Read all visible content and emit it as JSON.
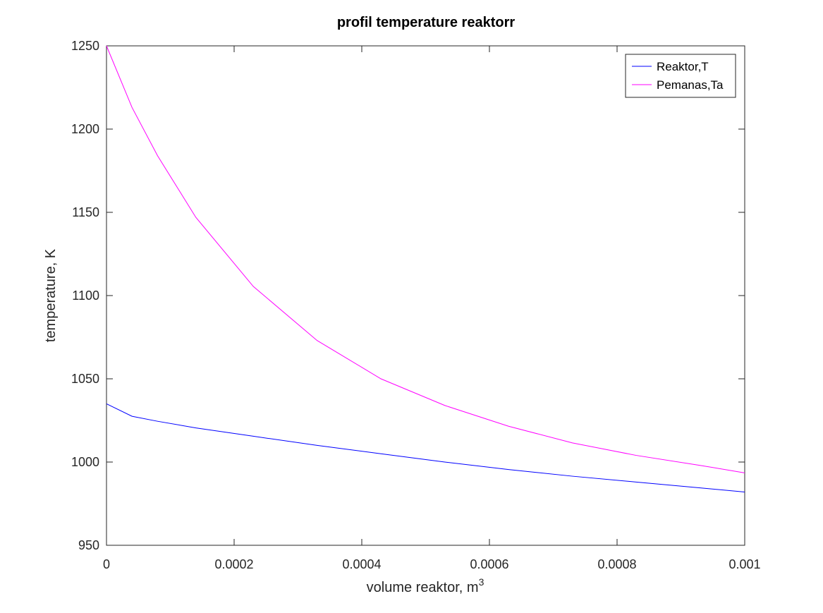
{
  "chart_data": {
    "type": "line",
    "title": "profil temperature reaktorr",
    "xlabel": "volume reaktor, m",
    "xlabel_sup": "3",
    "ylabel": "temperature, K",
    "xlim": [
      0,
      0.001
    ],
    "ylim": [
      950,
      1250
    ],
    "xticks": [
      0,
      0.0002,
      0.0004,
      0.0006,
      0.0008,
      0.001
    ],
    "xtick_labels": [
      "0",
      "0.0002",
      "0.0004",
      "0.0006",
      "0.0008",
      "0.001"
    ],
    "yticks": [
      950,
      1000,
      1050,
      1100,
      1150,
      1200,
      1250
    ],
    "ytick_labels": [
      "950",
      "1000",
      "1050",
      "1100",
      "1150",
      "1200",
      "1250"
    ],
    "grid": false,
    "legend_position": "top-right",
    "series": [
      {
        "name": "Reaktor,T",
        "color": "#0000ff",
        "x": [
          0,
          4e-05,
          8e-05,
          0.00014,
          0.00023,
          0.00033,
          0.00043,
          0.00053,
          0.00063,
          0.00073,
          0.00083,
          0.00093,
          0.001
        ],
        "y": [
          1035,
          1027.5,
          1024.5,
          1020.5,
          1015.5,
          1010,
          1005,
          1000,
          995.5,
          991.5,
          988,
          984.5,
          982
        ]
      },
      {
        "name": "Pemanas,Ta",
        "color": "#ff00ff",
        "x": [
          0,
          4e-05,
          8e-05,
          0.00014,
          0.00023,
          0.00033,
          0.00043,
          0.00053,
          0.00063,
          0.00073,
          0.00083,
          0.00093,
          0.001
        ],
        "y": [
          1250,
          1213,
          1184,
          1147,
          1105.5,
          1073,
          1050,
          1034,
          1021.5,
          1011.5,
          1004,
          998,
          993.5
        ]
      }
    ]
  }
}
